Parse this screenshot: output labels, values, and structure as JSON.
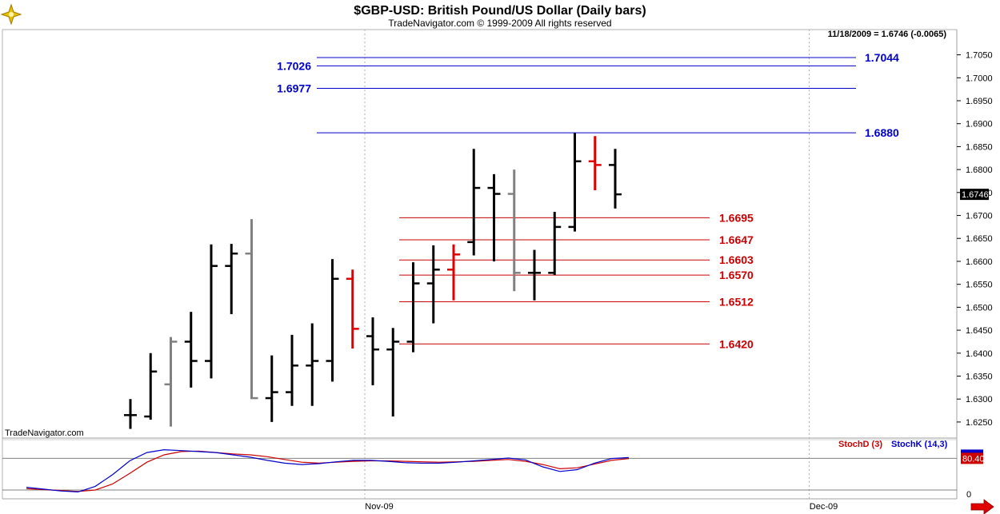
{
  "header": {
    "title": "$GBP-USD:  British Pound/US Dollar  (Daily bars)",
    "copyright": "TradeNavigator.com © 1999-2009 All rights reserved",
    "last_quote": "11/18/2009 = 1.6746 (-0.0065)",
    "watermark": "TradeNavigator.com"
  },
  "colors": {
    "bar_normal": "#000000",
    "bar_highlight": "#e00000",
    "bar_gray": "#808080",
    "resistance": "#0000cc",
    "support": "#cc0000",
    "stoch_d": "#cc0000",
    "stoch_k": "#0000cc"
  },
  "chart_data": [
    {
      "type": "ohlc",
      "title": "$GBP-USD:  British Pound/US Dollar  (Daily bars)",
      "y_range": [
        1.6215,
        1.7105
      ],
      "y_ticks": [
        "1.6250",
        "1.6300",
        "1.6350",
        "1.6400",
        "1.6450",
        "1.6500",
        "1.6550",
        "1.6600",
        "1.6650",
        "1.6700",
        "1.6750",
        "1.6800",
        "1.6850",
        "1.6900",
        "1.6950",
        "1.7000",
        "1.7050"
      ],
      "x_labels": [
        {
          "label": "Nov-09",
          "bar_index": 12
        },
        {
          "label": "Dec-09",
          "bar_index": 34
        }
      ],
      "last_price_label": "1.6746",
      "bars": [
        {
          "o": 1.6265,
          "h": 1.63,
          "l": 1.6235,
          "c": 1.6265,
          "color": "normal"
        },
        {
          "o": 1.6262,
          "h": 1.64,
          "l": 1.6255,
          "c": 1.636,
          "color": "normal"
        },
        {
          "o": 1.6332,
          "h": 1.6435,
          "l": 1.624,
          "c": 1.6425,
          "color": "gray"
        },
        {
          "o": 1.6425,
          "h": 1.649,
          "l": 1.6325,
          "c": 1.6383,
          "color": "normal"
        },
        {
          "o": 1.6383,
          "h": 1.6637,
          "l": 1.6345,
          "c": 1.659,
          "color": "normal"
        },
        {
          "o": 1.659,
          "h": 1.6638,
          "l": 1.6485,
          "c": 1.6617,
          "color": "normal"
        },
        {
          "o": 1.6617,
          "h": 1.6692,
          "l": 1.63,
          "c": 1.6302,
          "color": "gray"
        },
        {
          "o": 1.6302,
          "h": 1.6395,
          "l": 1.625,
          "c": 1.6315,
          "color": "normal"
        },
        {
          "o": 1.6315,
          "h": 1.644,
          "l": 1.6285,
          "c": 1.6373,
          "color": "normal"
        },
        {
          "o": 1.6373,
          "h": 1.6465,
          "l": 1.6285,
          "c": 1.6383,
          "color": "normal"
        },
        {
          "o": 1.6383,
          "h": 1.6605,
          "l": 1.6338,
          "c": 1.6562,
          "color": "normal"
        },
        {
          "o": 1.6562,
          "h": 1.6582,
          "l": 1.641,
          "c": 1.6453,
          "color": "highlight"
        },
        {
          "o": 1.6437,
          "h": 1.6478,
          "l": 1.633,
          "c": 1.6408,
          "color": "normal"
        },
        {
          "o": 1.6408,
          "h": 1.6455,
          "l": 1.6262,
          "c": 1.6425,
          "color": "normal"
        },
        {
          "o": 1.6425,
          "h": 1.6598,
          "l": 1.6402,
          "c": 1.6552,
          "color": "normal"
        },
        {
          "o": 1.6552,
          "h": 1.6635,
          "l": 1.6465,
          "c": 1.6582,
          "color": "normal"
        },
        {
          "o": 1.6582,
          "h": 1.6637,
          "l": 1.6515,
          "c": 1.6615,
          "color": "highlight"
        },
        {
          "o": 1.6642,
          "h": 1.6845,
          "l": 1.6613,
          "c": 1.676,
          "color": "normal"
        },
        {
          "o": 1.676,
          "h": 1.679,
          "l": 1.66,
          "c": 1.6747,
          "color": "normal"
        },
        {
          "o": 1.6747,
          "h": 1.68,
          "l": 1.6535,
          "c": 1.6575,
          "color": "gray"
        },
        {
          "o": 1.6575,
          "h": 1.6625,
          "l": 1.6515,
          "c": 1.6575,
          "color": "normal"
        },
        {
          "o": 1.6575,
          "h": 1.6708,
          "l": 1.657,
          "c": 1.6675,
          "color": "normal"
        },
        {
          "o": 1.6675,
          "h": 1.688,
          "l": 1.6665,
          "c": 1.6818,
          "color": "normal"
        },
        {
          "o": 1.6818,
          "h": 1.6873,
          "l": 1.6755,
          "c": 1.681,
          "color": "highlight"
        },
        {
          "o": 1.681,
          "h": 1.6845,
          "l": 1.6715,
          "c": 1.6746,
          "color": "normal"
        }
      ],
      "resistance_levels": [
        {
          "value": 1.7044,
          "label": "1.7044",
          "label_side": "right"
        },
        {
          "value": 1.7026,
          "label": "1.7026",
          "label_side": "left"
        },
        {
          "value": 1.6977,
          "label": "1.6977",
          "label_side": "left"
        },
        {
          "value": 1.688,
          "label": "1.6880",
          "label_side": "right"
        }
      ],
      "support_levels": [
        {
          "value": 1.6695,
          "label": "1.6695"
        },
        {
          "value": 1.6647,
          "label": "1.6647"
        },
        {
          "value": 1.6603,
          "label": "1.6603"
        },
        {
          "value": 1.657,
          "label": "1.6570"
        },
        {
          "value": 1.6512,
          "label": "1.6512"
        },
        {
          "value": 1.642,
          "label": "1.6420"
        }
      ]
    },
    {
      "type": "line",
      "title": "",
      "y_range": [
        0,
        100
      ],
      "reference_line": 80.4,
      "reference_label": "80.40",
      "zero_label": "0",
      "series": [
        {
          "name": "StochD (3)",
          "color": "#cc0000",
          "values": [
            15,
            13,
            11,
            9,
            12,
            25,
            48,
            72,
            88,
            95,
            96,
            93,
            90,
            88,
            84,
            78,
            72,
            70,
            72,
            74,
            75,
            75,
            74,
            73,
            72,
            73,
            74,
            76,
            78,
            74,
            67,
            58,
            60,
            68,
            76,
            80
          ]
        },
        {
          "name": "StochK (14,3)",
          "color": "#0000cc",
          "values": [
            18,
            14,
            10,
            8,
            20,
            45,
            75,
            93,
            99,
            97,
            95,
            93,
            88,
            83,
            76,
            70,
            67,
            69,
            73,
            76,
            76,
            74,
            71,
            70,
            70,
            72,
            75,
            78,
            81,
            77,
            62,
            52,
            56,
            70,
            80,
            82
          ]
        }
      ]
    }
  ]
}
